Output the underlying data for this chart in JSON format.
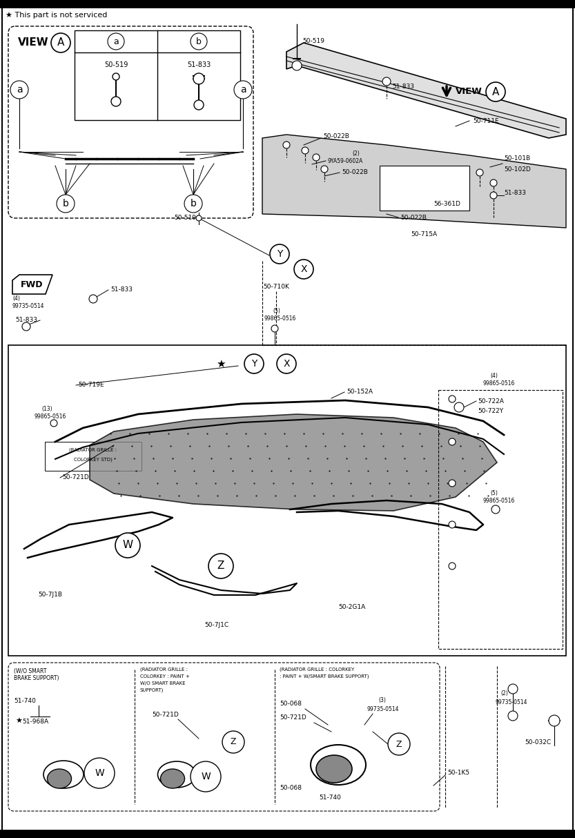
{
  "bg_color": "#ffffff",
  "lw": 0.8,
  "fs_label": 6.5,
  "fs_small": 5.5,
  "fs_title": 8.5,
  "header_text": "★ This part is not serviced",
  "view_a_label": "VIEW",
  "view_a_circle": "A",
  "table_col_a": "a",
  "table_col_b": "b",
  "table_p1": "50-519",
  "table_p2": "51-833",
  "fwd": "FWD",
  "parts": {
    "50-519": "50-519",
    "51-833": "51-833",
    "50-711E": "50-711E",
    "50-022B": "50-022B",
    "9YA59-0602A": "9YA59-0602A",
    "50-101B": "50-101B",
    "50-102D": "50-102D",
    "56-361D": "56-361D",
    "50-715A": "50-715A",
    "50-710K": "50-710K",
    "50-719E": "50-719E",
    "99865-0516": "99865-0516",
    "99735-0514": "99735-0514",
    "50-721D": "50-721D",
    "50-152A": "50-152A",
    "50-722A": "50-722A",
    "50-722Y": "50-722Y",
    "50-7J1B": "50-7J1B",
    "50-7J1C": "50-7J1C",
    "50-2G1A": "50-2G1A",
    "51-740": "51-740",
    "51-968A": "51-968A",
    "50-068": "50-068",
    "50-1K5": "50-1K5",
    "50-032C": "50-032C"
  },
  "box1_title": "(W/O SMART\nBRAKE SUPPORT)",
  "box2_title": "(RADIATOR GRILLE :\nCOLORKEY : PAINT +\nW/O SMART BRAKE\nSUPPORT)",
  "box3_title": "(RADIATOR GRILLE : COLORKEY\n: PAINT + W/SMART BRAKE SUPPORT)"
}
